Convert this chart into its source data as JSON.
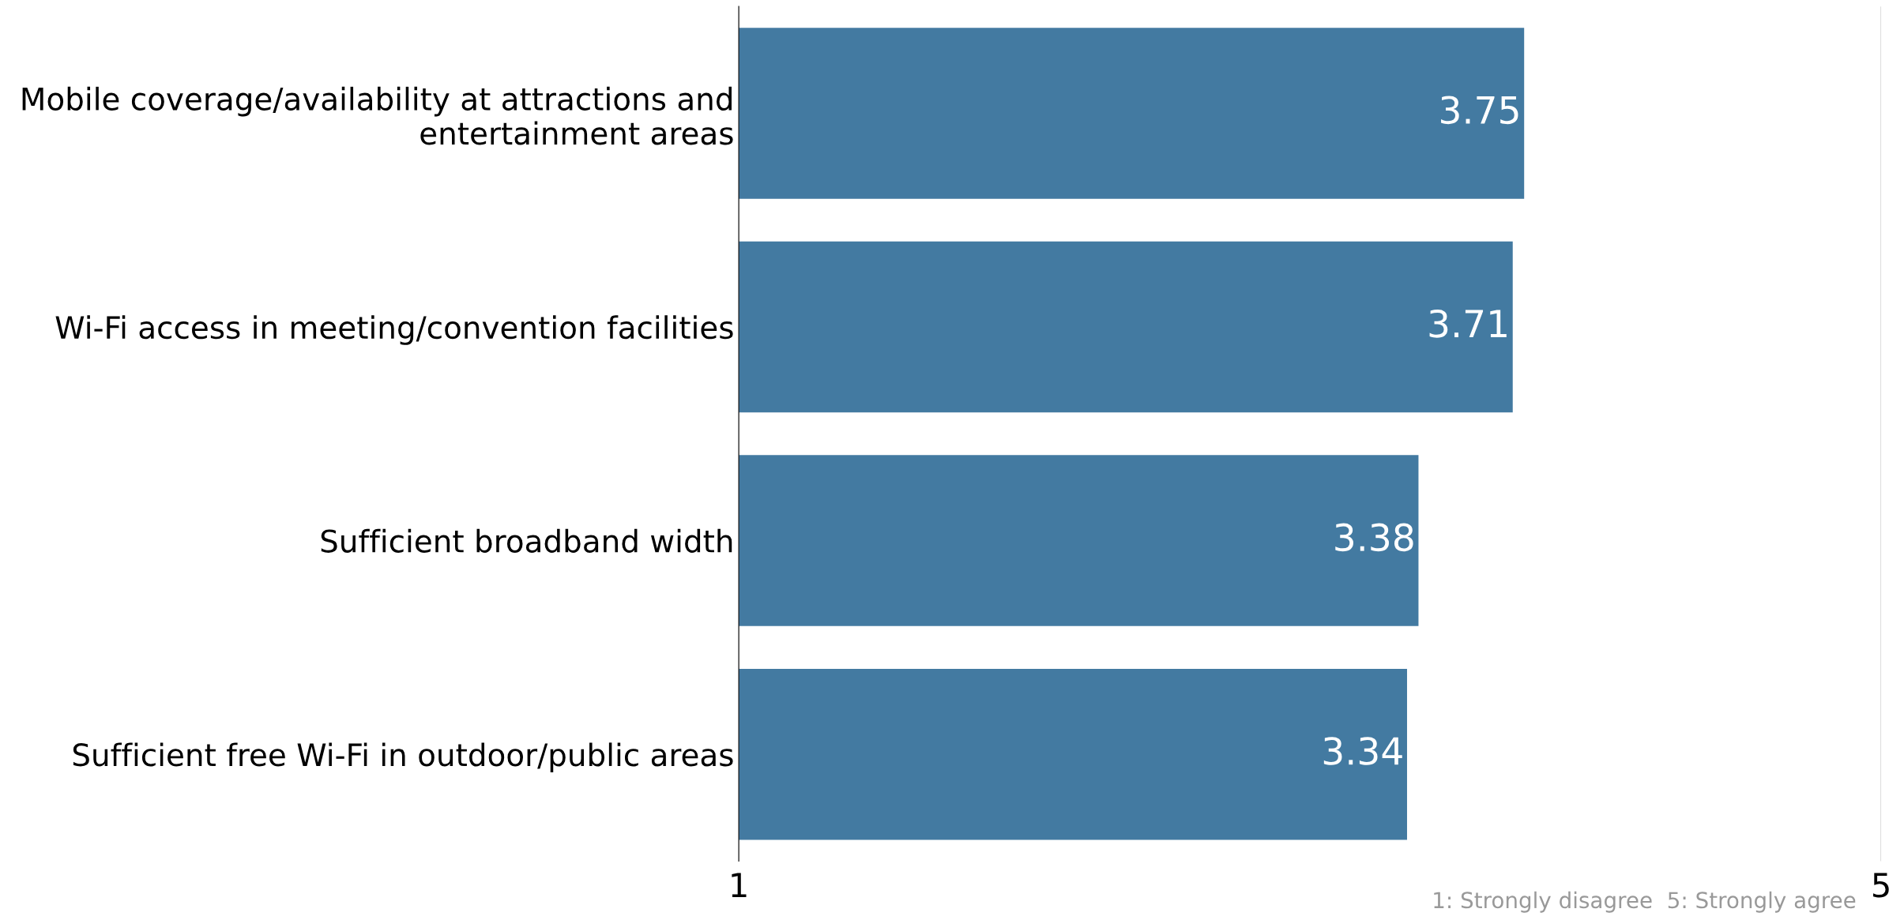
{
  "chart_data": {
    "type": "bar",
    "orientation": "horizontal",
    "categories": [
      "Mobile coverage/availability at attractions and\nentertainment areas",
      "Wi-Fi access in meeting/convention facilities",
      "Sufficient broadband width",
      "Sufficient free Wi-Fi in outdoor/public areas"
    ],
    "values": [
      3.75,
      3.71,
      3.38,
      3.34
    ],
    "color": "#437aa1",
    "xlim": [
      1,
      5
    ],
    "xticks": [
      1,
      5
    ],
    "grid": "x",
    "data_labels": true,
    "annotations": [
      "1: Strongly disagree  5: Strongly agree"
    ]
  }
}
